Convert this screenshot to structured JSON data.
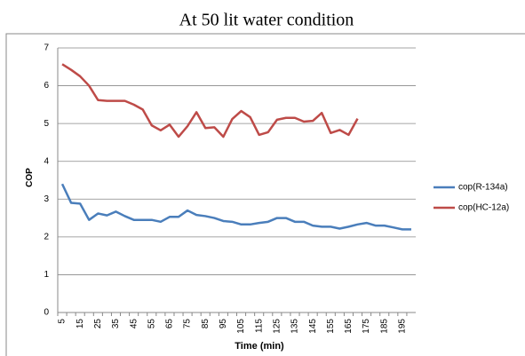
{
  "chart_data": {
    "type": "line",
    "title": "At 50 lit water condition",
    "x_label": "Time (min)",
    "y_label": "COP",
    "categories": [
      "5",
      null,
      "15",
      null,
      "25",
      null,
      "35",
      null,
      "45",
      null,
      "55",
      null,
      "65",
      null,
      "75",
      null,
      "85",
      null,
      "95",
      null,
      "105",
      null,
      "115",
      null,
      "125",
      null,
      "135",
      null,
      "145",
      null,
      "155",
      null,
      "165",
      null,
      "175",
      null,
      "185",
      null,
      "195",
      null
    ],
    "series": [
      {
        "name": "cop(R-134a)",
        "color": "#4a7ebb",
        "values": [
          3.4,
          2.9,
          2.88,
          2.45,
          2.62,
          2.57,
          2.67,
          2.55,
          2.45,
          2.45,
          2.45,
          2.4,
          2.53,
          2.53,
          2.7,
          2.58,
          2.55,
          2.5,
          2.42,
          2.4,
          2.33,
          2.33,
          2.37,
          2.4,
          2.5,
          2.5,
          2.4,
          2.4,
          2.3,
          2.27,
          2.27,
          2.22,
          2.27,
          2.33,
          2.37,
          2.3,
          2.3,
          2.25,
          2.2,
          2.2
        ]
      },
      {
        "name": "cop(HC-12a)",
        "color": "#be4b48",
        "values": [
          6.57,
          6.42,
          6.25,
          6.0,
          5.62,
          5.6,
          5.6,
          5.6,
          5.5,
          5.37,
          4.95,
          4.82,
          4.97,
          4.65,
          4.93,
          5.3,
          4.88,
          4.9,
          4.65,
          5.12,
          5.33,
          5.17,
          4.7,
          4.77,
          5.1,
          5.15,
          5.15,
          5.05,
          5.07,
          5.28,
          4.75,
          4.83,
          4.7,
          5.13,
          null,
          null,
          null,
          null,
          null,
          null
        ]
      }
    ],
    "ylim": [
      0,
      7
    ],
    "yticks": [
      0,
      1,
      2,
      3,
      4,
      5,
      6,
      7
    ],
    "grid": true,
    "legend": "right"
  }
}
